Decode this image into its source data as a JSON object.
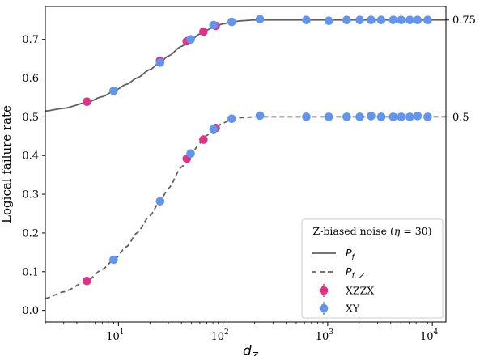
{
  "chart_data": {
    "type": "scatter",
    "xlabel": "d",
    "xlabel_sub": "Z",
    "ylabel": "Logical failure rate",
    "x_scale": "log",
    "xlim": [
      2,
      13500
    ],
    "ylim": [
      -0.03,
      0.785
    ],
    "y_ticks": [
      "0.0",
      "0.1",
      "0.2",
      "0.3",
      "0.4",
      "0.5",
      "0.6",
      "0.7"
    ],
    "y_tick_values": [
      0.0,
      0.1,
      0.2,
      0.3,
      0.4,
      0.5,
      0.6,
      0.7
    ],
    "x_ticks": [
      {
        "value": 10,
        "base": "10",
        "exp": "1"
      },
      {
        "value": 100,
        "base": "10",
        "exp": "2"
      },
      {
        "value": 1000,
        "base": "10",
        "exp": "3"
      },
      {
        "value": 10000,
        "base": "10",
        "exp": "4"
      }
    ],
    "right_ticks": [
      {
        "value": 0.75,
        "label": "0.75"
      },
      {
        "value": 0.5,
        "label": "0.5"
      }
    ],
    "grid": false,
    "legend": {
      "placement": "lower-right",
      "title": "Z-biased noise (",
      "title_eta": "η",
      "title_suffix": " = 30)",
      "entries": [
        {
          "label": "P",
          "sub": "f",
          "style": "solid"
        },
        {
          "label": "P",
          "sub": "f, Z",
          "style": "dashed"
        },
        {
          "label": "XZZX",
          "style": "marker",
          "color": "#dc3486"
        },
        {
          "label": "XY",
          "style": "marker",
          "color": "#6495ed"
        }
      ]
    },
    "curves": [
      {
        "name": "P_f",
        "style": "solid",
        "color": "#606060",
        "x": [
          2,
          3,
          5,
          7,
          9,
          12,
          15,
          20,
          25,
          30,
          40,
          50,
          60,
          70,
          80,
          100,
          120,
          150,
          200,
          300,
          500,
          1000,
          13500
        ],
        "y": [
          0.515,
          0.522,
          0.537,
          0.552,
          0.566,
          0.584,
          0.6,
          0.622,
          0.641,
          0.657,
          0.682,
          0.7,
          0.714,
          0.724,
          0.731,
          0.74,
          0.745,
          0.748,
          0.75,
          0.75,
          0.75,
          0.75,
          0.75
        ]
      },
      {
        "name": "P_f,Z",
        "style": "dashed",
        "color": "#606060",
        "x": [
          2,
          3,
          5,
          7,
          9,
          12,
          15,
          20,
          25,
          30,
          40,
          50,
          60,
          70,
          80,
          100,
          120,
          150,
          200,
          300,
          500,
          1000,
          13500
        ],
        "y": [
          0.031,
          0.048,
          0.076,
          0.106,
          0.13,
          0.165,
          0.2,
          0.245,
          0.282,
          0.315,
          0.37,
          0.405,
          0.432,
          0.452,
          0.466,
          0.484,
          0.493,
          0.498,
          0.5,
          0.5,
          0.5,
          0.5,
          0.5
        ]
      }
    ],
    "series": [
      {
        "name": "XZZX",
        "color": "#dc3486",
        "points": [
          [
            5,
            0.539
          ],
          [
            25,
            0.645
          ],
          [
            45,
            0.695
          ],
          [
            65,
            0.72
          ],
          [
            85,
            0.735
          ],
          [
            5,
            0.076
          ],
          [
            45,
            0.392
          ],
          [
            65,
            0.441
          ],
          [
            85,
            0.471
          ]
        ]
      },
      {
        "name": "XY",
        "color": "#6495ed",
        "points": [
          [
            9,
            0.567
          ],
          [
            25,
            0.64
          ],
          [
            49,
            0.7
          ],
          [
            81,
            0.737
          ],
          [
            121,
            0.745
          ],
          [
            225,
            0.752
          ],
          [
            625,
            0.75
          ],
          [
            1024,
            0.748
          ],
          [
            1521,
            0.75
          ],
          [
            2025,
            0.75
          ],
          [
            2601,
            0.75
          ],
          [
            3249,
            0.75
          ],
          [
            4225,
            0.75
          ],
          [
            5041,
            0.75
          ],
          [
            6084,
            0.75
          ],
          [
            7225,
            0.75
          ],
          [
            9025,
            0.75
          ],
          [
            9,
            0.131
          ],
          [
            25,
            0.282
          ],
          [
            49,
            0.405
          ],
          [
            81,
            0.468
          ],
          [
            121,
            0.495
          ],
          [
            225,
            0.503
          ],
          [
            625,
            0.5
          ],
          [
            1024,
            0.5
          ],
          [
            1521,
            0.5
          ],
          [
            2025,
            0.5
          ],
          [
            2601,
            0.502
          ],
          [
            3249,
            0.5
          ],
          [
            4225,
            0.5
          ],
          [
            5041,
            0.5
          ],
          [
            6084,
            0.5
          ],
          [
            7225,
            0.502
          ],
          [
            9025,
            0.5
          ]
        ]
      }
    ]
  }
}
